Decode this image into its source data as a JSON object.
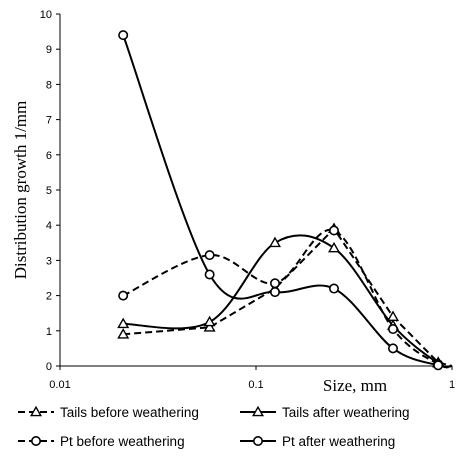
{
  "chart_data": {
    "type": "line",
    "title": "",
    "xlabel": "Size, mm",
    "ylabel": "Distribution growth 1/mm",
    "x_scale": "log",
    "xlim": [
      0.01,
      1
    ],
    "ylim": [
      0,
      10
    ],
    "x_ticks": [
      0.01,
      0.1,
      1
    ],
    "x_tick_labels": [
      "0.01",
      "0.1",
      "1"
    ],
    "y_ticks": [
      0,
      1,
      2,
      3,
      4,
      5,
      6,
      7,
      8,
      9,
      10
    ],
    "y_tick_labels": [
      "0",
      "1",
      "2",
      "3",
      "4",
      "5",
      "6",
      "7",
      "8",
      "9",
      "10"
    ],
    "grid": false,
    "legend_position": "bottom",
    "series": [
      {
        "name": "Tails before weathering",
        "marker": "triangle-icon",
        "line_style": "dashed",
        "color": "#000000",
        "smooth": false,
        "x": [
          0.021,
          0.058,
          0.125,
          0.25,
          0.5,
          0.85,
          1.0
        ],
        "y": [
          0.9,
          1.1,
          2.2,
          3.9,
          1.4,
          0.1,
          0
        ]
      },
      {
        "name": "Tails after weathering",
        "marker": "triangle-icon",
        "line_style": "solid",
        "color": "#000000",
        "smooth": true,
        "x": [
          0.021,
          0.058,
          0.125,
          0.25,
          0.5,
          0.85,
          1.0
        ],
        "y": [
          1.2,
          1.25,
          3.5,
          3.35,
          1.15,
          0.08,
          0
        ]
      },
      {
        "name": "Pt before weathering",
        "marker": "circle-icon",
        "line_style": "dashed",
        "color": "#000000",
        "smooth": true,
        "x": [
          0.021,
          0.058,
          0.125,
          0.25,
          0.5,
          0.85,
          1.0
        ],
        "y": [
          2.0,
          3.15,
          2.35,
          3.85,
          1.05,
          0.05,
          0
        ]
      },
      {
        "name": "Pt after weathering",
        "marker": "circle-icon",
        "line_style": "solid",
        "color": "#000000",
        "smooth": true,
        "x": [
          0.021,
          0.058,
          0.125,
          0.25,
          0.5,
          0.85,
          1.0
        ],
        "y": [
          9.4,
          2.6,
          2.1,
          2.2,
          0.5,
          0.02,
          0
        ]
      }
    ]
  }
}
